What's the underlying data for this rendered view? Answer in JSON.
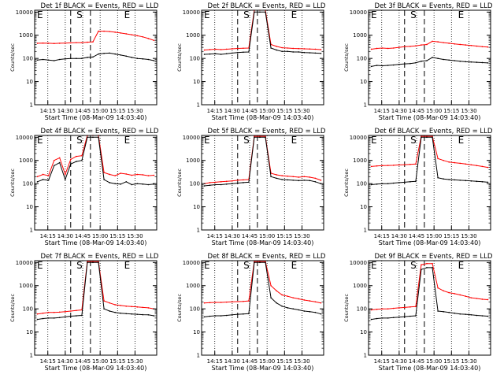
{
  "chart_data": {
    "type": "line",
    "title_suffix": "BLACK = Events, RED = LLD",
    "xlabel": "Start Time (08-Mar-09 14:03:40)",
    "ylabel": "Counts/sec",
    "y_scale": "log",
    "ylim": [
      1,
      12000
    ],
    "xlim_minutes": [
      0,
      105
    ],
    "x_tick_labels": [
      "14:15",
      "14:30",
      "14:45",
      "15:00",
      "15:15",
      "15:30"
    ],
    "x_tick_minutes": [
      11.33,
      26.33,
      41.33,
      56.33,
      71.33,
      86.33
    ],
    "y_tick_labels": [
      "1",
      "10",
      "100",
      "1000",
      "10000"
    ],
    "y_tick_values": [
      1,
      10,
      100,
      1000,
      10000
    ],
    "dotted_grid_minutes": [
      11.33,
      26.33,
      41.33,
      56.33,
      71.33,
      86.33
    ],
    "dashed_marker_minutes": [
      31,
      48
    ],
    "interval_labels": [
      {
        "text": "E",
        "minute": 2
      },
      {
        "text": "S",
        "minute": 36
      },
      {
        "text": "E",
        "minute": 77
      }
    ],
    "series_colors": {
      "events": "#000000",
      "lld": "#ff0000"
    },
    "panels": [
      {
        "det": "Det 1f",
        "events": [
          85,
          90,
          85,
          80,
          90,
          95,
          100,
          100,
          100,
          110,
          115,
          155,
          165,
          170,
          155,
          140,
          125,
          110,
          100,
          95,
          90,
          80
        ],
        "lld": [
          450,
          460,
          450,
          440,
          450,
          460,
          470,
          480,
          480,
          500,
          520,
          1500,
          1500,
          1450,
          1350,
          1250,
          1150,
          1050,
          950,
          850,
          720,
          600
        ]
      },
      {
        "det": "Det 2f",
        "events": [
          150,
          155,
          160,
          150,
          160,
          170,
          180,
          185,
          190,
          10000,
          10000,
          10000,
          280,
          230,
          200,
          200,
          190,
          190,
          180,
          175,
          170,
          165
        ],
        "lld": [
          230,
          240,
          250,
          240,
          250,
          260,
          270,
          275,
          280,
          12000,
          12000,
          12000,
          400,
          330,
          290,
          280,
          270,
          265,
          260,
          255,
          250,
          240
        ]
      },
      {
        "det": "Det 3f",
        "events": [
          45,
          50,
          48,
          50,
          52,
          55,
          58,
          60,
          65,
          75,
          80,
          110,
          100,
          90,
          85,
          80,
          75,
          72,
          70,
          68,
          66,
          64
        ],
        "lld": [
          250,
          270,
          280,
          270,
          280,
          300,
          320,
          330,
          350,
          380,
          400,
          550,
          520,
          480,
          450,
          420,
          400,
          380,
          360,
          340,
          320,
          310
        ]
      },
      {
        "det": "Det 4f",
        "events": [
          120,
          150,
          140,
          600,
          800,
          150,
          700,
          900,
          1000,
          10000,
          10000,
          10000,
          150,
          110,
          100,
          95,
          120,
          90,
          100,
          95,
          90,
          95
        ],
        "lld": [
          200,
          250,
          220,
          1000,
          1300,
          250,
          1100,
          1500,
          1600,
          12000,
          12000,
          12000,
          300,
          250,
          220,
          280,
          260,
          230,
          250,
          240,
          220,
          230
        ]
      },
      {
        "det": "Det 5f",
        "events": [
          80,
          85,
          90,
          90,
          95,
          100,
          105,
          110,
          115,
          10000,
          10000,
          10000,
          200,
          170,
          150,
          145,
          140,
          135,
          140,
          135,
          120,
          100
        ],
        "lld": [
          100,
          110,
          115,
          120,
          125,
          130,
          140,
          145,
          150,
          11000,
          11000,
          11000,
          280,
          240,
          220,
          210,
          200,
          190,
          200,
          190,
          170,
          140
        ]
      },
      {
        "det": "Det 6f",
        "events": [
          90,
          95,
          100,
          100,
          105,
          110,
          115,
          120,
          125,
          10000,
          10000,
          10000,
          180,
          160,
          150,
          145,
          140,
          135,
          130,
          125,
          120,
          115
        ],
        "lld": [
          550,
          580,
          600,
          610,
          620,
          640,
          660,
          680,
          700,
          11000,
          11000,
          11000,
          1200,
          1000,
          850,
          800,
          750,
          700,
          650,
          600,
          550,
          500
        ]
      },
      {
        "det": "Det 7f",
        "events": [
          35,
          38,
          40,
          40,
          42,
          45,
          48,
          50,
          52,
          10000,
          10000,
          10000,
          100,
          80,
          70,
          65,
          62,
          60,
          58,
          56,
          55,
          50
        ],
        "lld": [
          60,
          65,
          70,
          70,
          72,
          75,
          80,
          85,
          90,
          11000,
          11000,
          11000,
          220,
          180,
          150,
          140,
          130,
          125,
          120,
          115,
          110,
          100
        ]
      },
      {
        "det": "Det 8f",
        "events": [
          45,
          48,
          50,
          50,
          52,
          55,
          58,
          60,
          62,
          10000,
          10000,
          10000,
          300,
          180,
          130,
          110,
          100,
          90,
          80,
          75,
          70,
          60
        ],
        "lld": [
          180,
          185,
          190,
          190,
          195,
          200,
          205,
          210,
          220,
          11000,
          11000,
          11000,
          1000,
          600,
          400,
          350,
          300,
          270,
          240,
          220,
          200,
          180
        ]
      },
      {
        "det": "Det 9f",
        "events": [
          35,
          38,
          40,
          40,
          42,
          44,
          46,
          48,
          50,
          5000,
          6000,
          6000,
          80,
          75,
          70,
          65,
          60,
          58,
          55,
          52,
          50,
          48
        ],
        "lld": [
          90,
          95,
          100,
          100,
          105,
          110,
          115,
          120,
          125,
          8000,
          9000,
          9000,
          800,
          600,
          500,
          450,
          400,
          350,
          300,
          280,
          260,
          250
        ]
      }
    ]
  }
}
